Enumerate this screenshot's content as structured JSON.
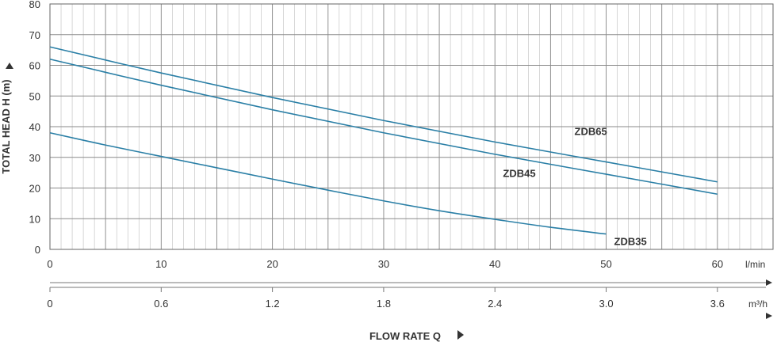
{
  "chart_data": {
    "type": "line",
    "title": "",
    "ylabel": "TOTAL HEAD H (m)",
    "xlabel": "FLOW RATE Q",
    "ylim": [
      0,
      80
    ],
    "xlim": [
      0,
      65
    ],
    "y_ticks": [
      "0",
      "10",
      "20",
      "30",
      "40",
      "50",
      "60",
      "70",
      "80"
    ],
    "x_ticks_lmin": [
      "0",
      "10",
      "20",
      "30",
      "40",
      "50",
      "60"
    ],
    "x_unit_lmin": "l/min",
    "x_ticks_m3h": [
      "0",
      "0.6",
      "1.2",
      "1.8",
      "2.4",
      "3.0",
      "3.6"
    ],
    "x_unit_m3h": "m³/h",
    "grid": true,
    "series_color": "#2a7fa6",
    "grid_color": "#bdbdbd",
    "series": [
      {
        "name": "ZDB65",
        "x": [
          0,
          10,
          20,
          30,
          40,
          50,
          60
        ],
        "y": [
          66,
          57.5,
          49.5,
          42,
          35,
          28.5,
          22
        ]
      },
      {
        "name": "ZDB45",
        "x": [
          0,
          10,
          20,
          30,
          40,
          50,
          60
        ],
        "y": [
          62,
          53.5,
          45.5,
          38,
          31,
          24.5,
          18
        ]
      },
      {
        "name": "ZDB35",
        "x": [
          0,
          5,
          10,
          15,
          20,
          25,
          30,
          35,
          40,
          45,
          50
        ],
        "y": [
          38,
          34,
          30.3,
          26.6,
          22.9,
          19.3,
          15.8,
          12.6,
          9.8,
          7.2,
          5
        ]
      }
    ]
  }
}
